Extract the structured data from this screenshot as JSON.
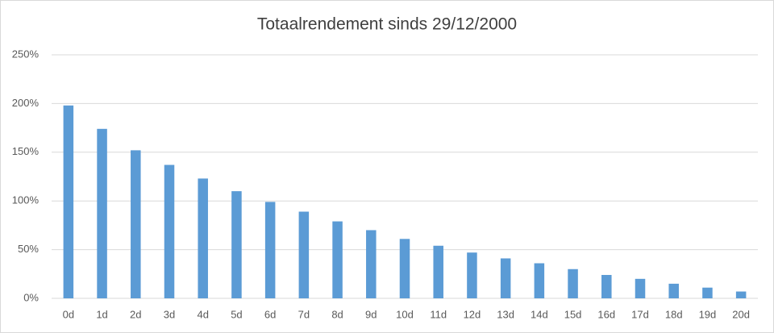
{
  "chart_data": {
    "type": "bar",
    "title": "Totaalrendement sinds 29/12/2000",
    "categories": [
      "0d",
      "1d",
      "2d",
      "3d",
      "4d",
      "5d",
      "6d",
      "7d",
      "8d",
      "9d",
      "10d",
      "11d",
      "12d",
      "13d",
      "14d",
      "15d",
      "16d",
      "17d",
      "18d",
      "19d",
      "20d"
    ],
    "values": [
      198,
      174,
      152,
      137,
      123,
      110,
      99,
      89,
      79,
      70,
      61,
      54,
      47,
      41,
      36,
      30,
      24,
      20,
      15,
      11,
      7
    ],
    "color": "#5b9bd5",
    "ylim": [
      0,
      250
    ],
    "yticks": [
      {
        "value": 0,
        "label": "0%"
      },
      {
        "value": 50,
        "label": "50%"
      },
      {
        "value": 100,
        "label": "100%"
      },
      {
        "value": 150,
        "label": "150%"
      },
      {
        "value": 200,
        "label": "200%"
      },
      {
        "value": 250,
        "label": "250%"
      }
    ],
    "grid": true
  }
}
